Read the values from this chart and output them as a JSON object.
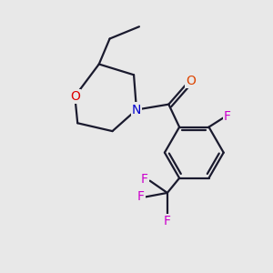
{
  "background_color": "#e8e8e8",
  "bond_color": "#1a1a2e",
  "atom_colors": {
    "O_morph": "#dd0000",
    "N": "#0000cc",
    "F": "#cc00cc",
    "O_carbonyl": "#dd4400"
  },
  "figsize": [
    3.0,
    3.0
  ],
  "dpi": 100
}
